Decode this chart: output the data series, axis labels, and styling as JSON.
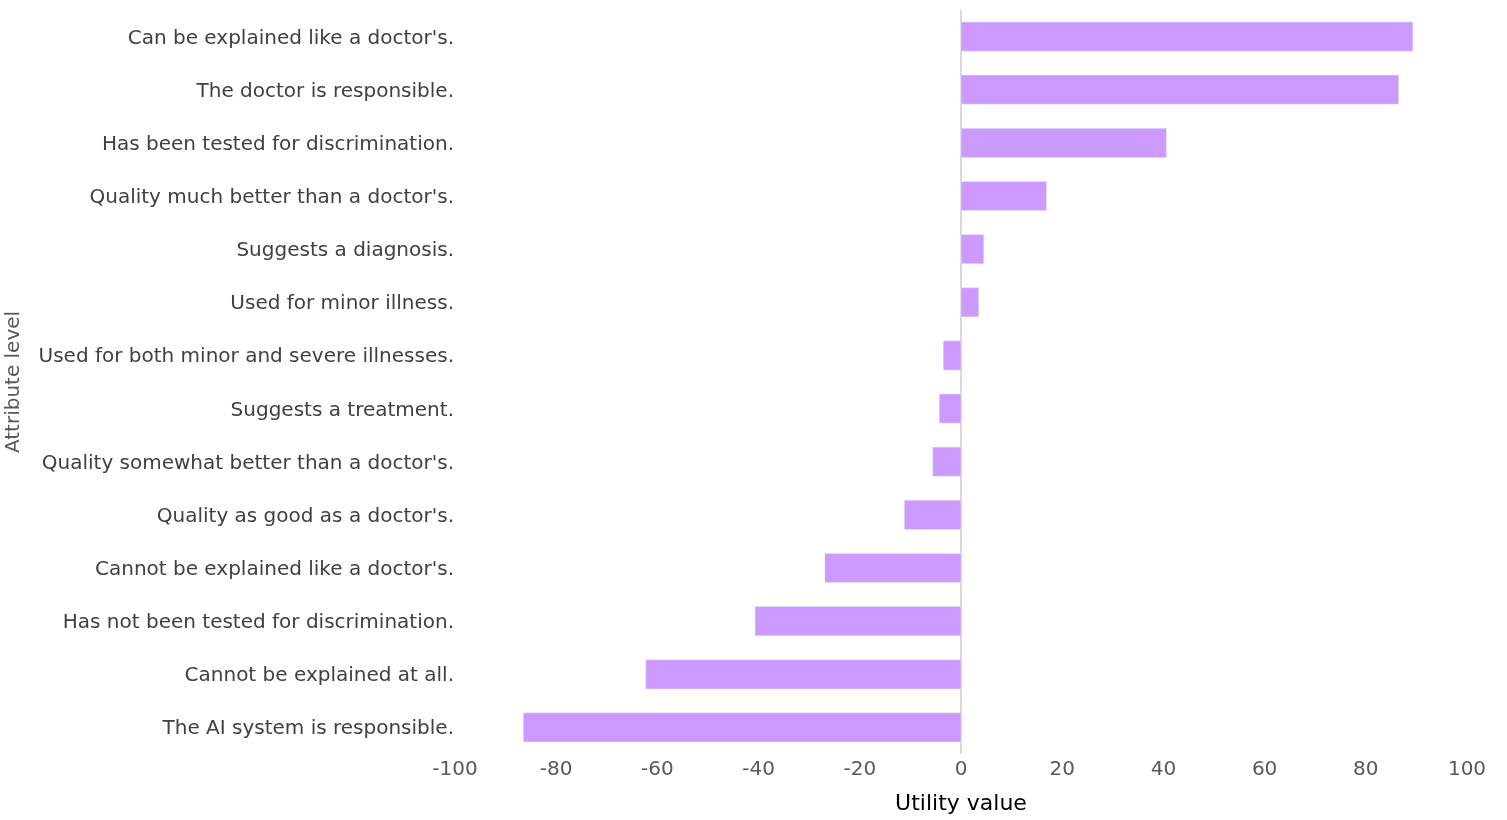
{
  "chart_data": {
    "type": "bar",
    "orientation": "horizontal",
    "xlabel": "Utility value",
    "ylabel": "Attribute level",
    "categories": [
      "Can be explained like a doctor's.",
      "The doctor is responsible.",
      "Has been tested for discrimination.",
      "Quality much better than a doctor's.",
      "Suggests a diagnosis.",
      "Used for minor illness.",
      "Used for both minor and severe illnesses.",
      "Suggests a treatment.",
      "Quality somewhat better than a doctor's.",
      "Quality as good as a doctor's.",
      "Cannot be explained like a doctor's.",
      "Has not been tested for discrimination.",
      "Cannot be explained at all.",
      "The AI system is responsible."
    ],
    "values": [
      89.3,
      86.5,
      40.6,
      16.9,
      4.5,
      3.5,
      -3.5,
      -4.3,
      -5.6,
      -11.2,
      -26.9,
      -40.7,
      -62.3,
      -86.5
    ],
    "color": "#cc99ff",
    "xlim": [
      -100,
      100
    ],
    "xticks": [
      -100,
      -80,
      -60,
      -40,
      -20,
      0,
      20,
      40,
      60,
      80,
      100
    ]
  }
}
